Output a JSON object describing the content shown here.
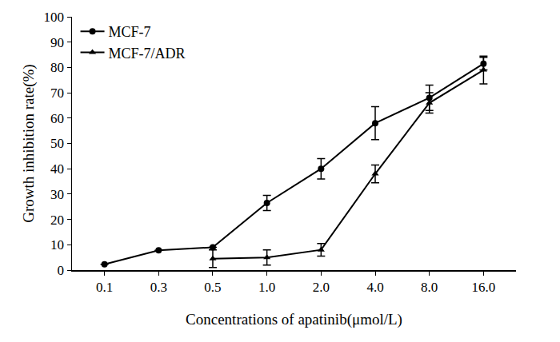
{
  "chart_data": {
    "type": "line",
    "x_label": "Concentrations of apatinib(μmol/L)",
    "y_label": "Growth inhibition rate(%)",
    "categories": [
      "0.1",
      "0.3",
      "0.5",
      "1.0",
      "2.0",
      "4.0",
      "8.0",
      "16.0"
    ],
    "series": [
      {
        "name": "MCF-7",
        "color": "#000000",
        "marker": "circle",
        "line_style": "solid",
        "values": [
          2.3,
          7.8,
          9,
          26.5,
          40,
          58,
          68,
          81.5
        ],
        "errors": [
          0,
          0,
          0,
          3,
          4,
          6.5,
          5,
          2.5
        ]
      },
      {
        "name": "MCF-7/ADR",
        "color": "#000000",
        "marker": "triangle-up",
        "line_style": "solid",
        "values": [
          null,
          null,
          4.5,
          5,
          8,
          38,
          66,
          79
        ],
        "errors": [
          null,
          null,
          3.5,
          3,
          2.5,
          3.5,
          4,
          5.5
        ]
      }
    ],
    "ylim": [
      0,
      100
    ],
    "yticks": [
      0,
      10,
      20,
      30,
      40,
      50,
      60,
      70,
      80,
      90,
      100
    ],
    "grid": false,
    "legend": "upper left"
  }
}
